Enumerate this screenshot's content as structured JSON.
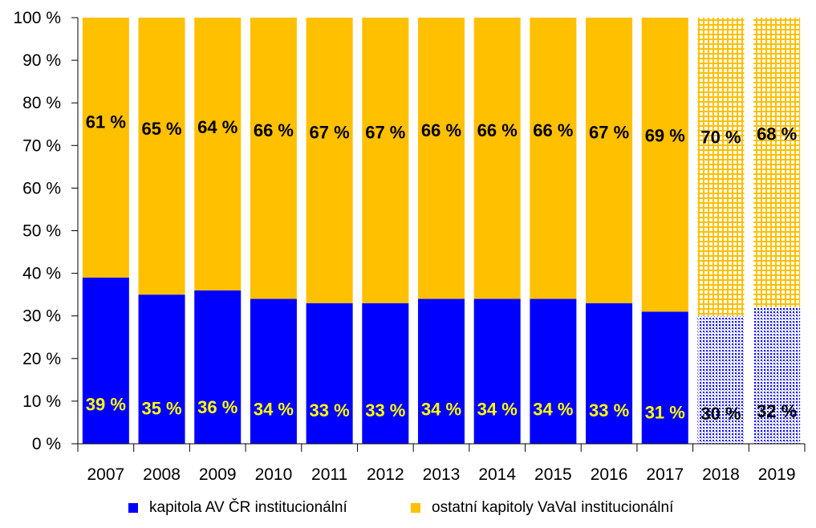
{
  "chart_data": {
    "type": "bar",
    "stacked": true,
    "percent_stacked": true,
    "categories": [
      "2007",
      "2008",
      "2009",
      "2010",
      "2011",
      "2012",
      "2013",
      "2014",
      "2015",
      "2016",
      "2017",
      "2018",
      "2019"
    ],
    "series": [
      {
        "name": "kapitola AV ČR institucionální",
        "values": [
          39,
          35,
          36,
          34,
          33,
          33,
          34,
          34,
          34,
          33,
          31,
          30,
          32
        ],
        "labels": [
          "39 %",
          "35 %",
          "36 %",
          "34 %",
          "33 %",
          "33 %",
          "34 %",
          "34 %",
          "34 %",
          "33 %",
          "31 %",
          "30 %",
          "32 %"
        ],
        "color": "#0000ff",
        "label_color": "#ffff00"
      },
      {
        "name": "ostatní kapitoly VaVaI institucionální",
        "values": [
          61,
          65,
          64,
          66,
          67,
          67,
          66,
          66,
          66,
          67,
          69,
          70,
          68
        ],
        "labels": [
          "61 %",
          "65 %",
          "64 %",
          "66 %",
          "67 %",
          "67 %",
          "66 %",
          "66 %",
          "66 %",
          "67 %",
          "69 %",
          "70 %",
          "68 %"
        ],
        "color": "#ffc000",
        "label_color": "#000000"
      }
    ],
    "patterned_categories": [
      "2018",
      "2019"
    ],
    "ylim": [
      0,
      100
    ],
    "yticks": [
      "0 %",
      "10 %",
      "20 %",
      "30 %",
      "40 %",
      "50 %",
      "60 %",
      "70 %",
      "80 %",
      "90 %",
      "100 %"
    ],
    "legend": "bottom",
    "grid": false
  }
}
